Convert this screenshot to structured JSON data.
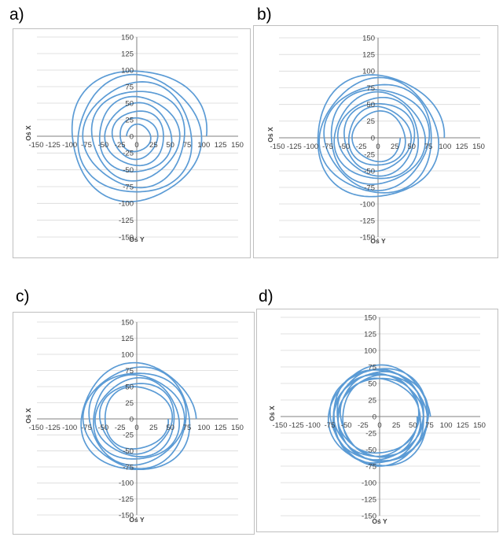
{
  "colors": {
    "series": "#5b9bd5",
    "grid": "#d9d9d9",
    "axis": "#808080",
    "border": "#bfbfbf"
  },
  "chart_data": [
    {
      "type": "line",
      "label": "a)",
      "xlabel": "Oś Y",
      "ylabel": "Oś X",
      "xlim": [
        -150,
        150
      ],
      "ylim": [
        -150,
        150
      ],
      "x_ticks": [
        -150,
        -125,
        -100,
        -75,
        -50,
        -25,
        0,
        25,
        50,
        75,
        100,
        125,
        150
      ],
      "y_ticks": [
        150,
        125,
        100,
        75,
        50,
        25,
        0,
        -25,
        -50,
        -75,
        -100,
        -125,
        -150
      ],
      "grid": true,
      "series": [
        {
          "shape": "spiral",
          "center": [
            0,
            0
          ],
          "radius_start": 104,
          "radius_end": 15,
          "turns": 8.5
        }
      ]
    },
    {
      "type": "line",
      "label": "b)",
      "xlabel": "Oś Y",
      "ylabel": "Oś X",
      "xlim": [
        -150,
        150
      ],
      "ylim": [
        -150,
        150
      ],
      "x_ticks": [
        -150,
        -125,
        -100,
        -75,
        -50,
        -25,
        0,
        25,
        50,
        75,
        100,
        125,
        150
      ],
      "y_ticks": [
        150,
        125,
        100,
        75,
        50,
        25,
        0,
        -25,
        -50,
        -75,
        -100,
        -125,
        -150
      ],
      "grid": true,
      "series": [
        {
          "shape": "spiral",
          "center": [
            0,
            0
          ],
          "radius_start": 96,
          "radius_end": 34,
          "turns": 9
        }
      ]
    },
    {
      "type": "line",
      "label": "c)",
      "xlabel": "Oś Y",
      "ylabel": "Oś X",
      "xlim": [
        -150,
        150
      ],
      "ylim": [
        -150,
        150
      ],
      "x_ticks": [
        -150,
        -125,
        -100,
        -75,
        -50,
        -25,
        0,
        25,
        50,
        75,
        100,
        125,
        150
      ],
      "y_ticks": [
        150,
        125,
        100,
        75,
        50,
        25,
        0,
        -25,
        -50,
        -75,
        -100,
        -125,
        -150
      ],
      "grid": true,
      "series": [
        {
          "shape": "spiral",
          "center": [
            0,
            0
          ],
          "radius_start": 86,
          "radius_end": 46,
          "turns": 7
        }
      ]
    },
    {
      "type": "line",
      "label": "d)",
      "xlabel": "Oś Y",
      "ylabel": "Oś X",
      "xlim": [
        -150,
        150
      ],
      "ylim": [
        -150,
        150
      ],
      "x_ticks": [
        -150,
        -125,
        -100,
        -75,
        -50,
        -25,
        0,
        25,
        50,
        75,
        100,
        125,
        150
      ],
      "y_ticks": [
        150,
        125,
        100,
        75,
        50,
        25,
        0,
        -25,
        -50,
        -75,
        -100,
        -125,
        -150
      ],
      "grid": true,
      "series": [
        {
          "shape": "spiral",
          "center": [
            0,
            0
          ],
          "radius_start": 76,
          "radius_end": 56,
          "turns": 10
        }
      ]
    }
  ]
}
